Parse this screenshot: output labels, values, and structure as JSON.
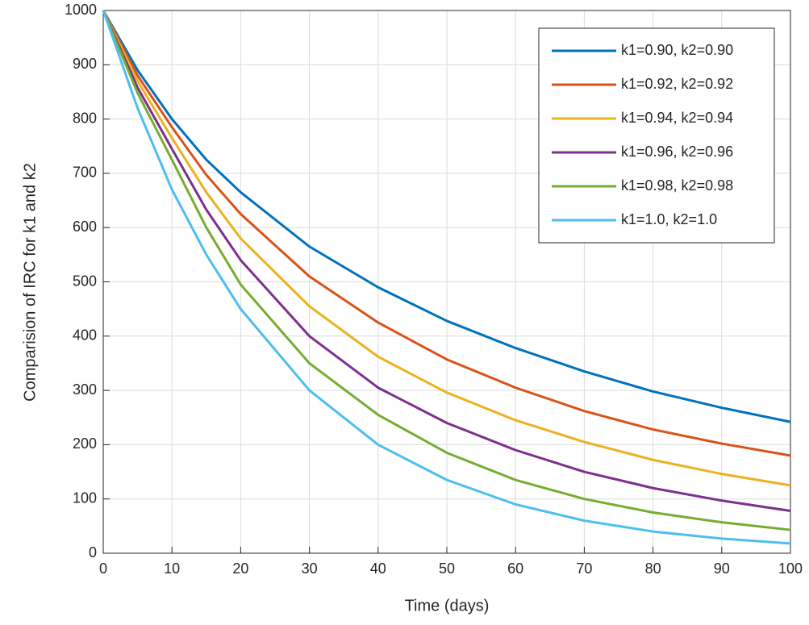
{
  "chart_data": {
    "type": "line",
    "xlabel": "Time (days)",
    "ylabel": "Comparision of IRC for k1 and k2",
    "x": [
      0,
      5,
      10,
      15,
      20,
      30,
      40,
      50,
      60,
      70,
      80,
      90,
      100
    ],
    "series": [
      {
        "name": "k1=0.90, k2=0.90",
        "color": "#0072bd",
        "values": [
          1000,
          890,
          800,
          725,
          665,
          565,
          490,
          428,
          378,
          335,
          298,
          268,
          242
        ]
      },
      {
        "name": "k1=0.92, k2=0.92",
        "color": "#d95319",
        "values": [
          1000,
          880,
          785,
          697,
          625,
          510,
          425,
          357,
          305,
          262,
          228,
          202,
          180
        ]
      },
      {
        "name": "k1=0.94, k2=0.94",
        "color": "#edb120",
        "values": [
          1000,
          870,
          765,
          665,
          580,
          455,
          362,
          296,
          245,
          205,
          172,
          146,
          125
        ]
      },
      {
        "name": "k1=0.96, k2=0.96",
        "color": "#7e2f8e",
        "values": [
          1000,
          858,
          745,
          633,
          540,
          400,
          305,
          240,
          190,
          150,
          120,
          97,
          78
        ]
      },
      {
        "name": "k1=0.98, k2=0.98",
        "color": "#77ac30",
        "values": [
          1000,
          848,
          725,
          600,
          495,
          350,
          255,
          185,
          135,
          100,
          75,
          57,
          43
        ]
      },
      {
        "name": "k1=1.0, k2=1.0",
        "color": "#4dbeee",
        "values": [
          1000,
          820,
          670,
          550,
          450,
          300,
          200,
          135,
          90,
          60,
          40,
          27,
          18
        ]
      }
    ],
    "xlim": [
      0,
      100
    ],
    "xticks": [
      0,
      10,
      20,
      30,
      40,
      50,
      60,
      70,
      80,
      90,
      100
    ],
    "ylim": [
      0,
      1000
    ],
    "yticks": [
      0,
      100,
      200,
      300,
      400,
      500,
      600,
      700,
      800,
      900,
      1000
    ],
    "grid": true,
    "legend": "northeast"
  }
}
